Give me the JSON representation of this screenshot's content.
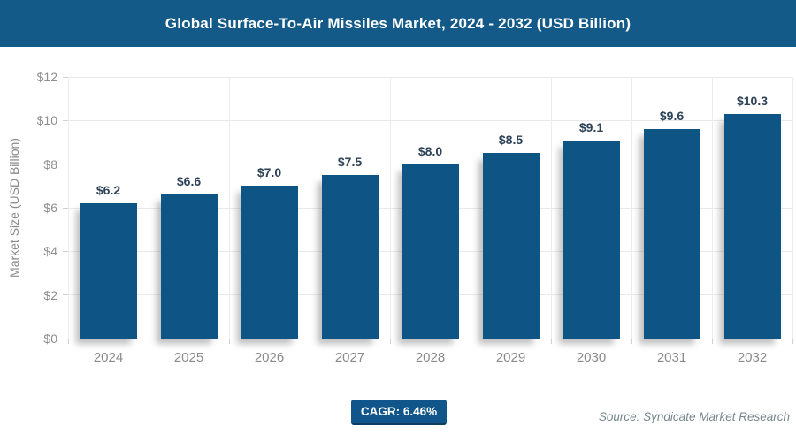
{
  "header": {
    "title": "Global Surface-To-Air Missiles Market, 2024 - 2032 (USD Billion)"
  },
  "chart_data": {
    "type": "bar",
    "title": "Global Surface-To-Air Missiles Market, 2024 - 2032 (USD Billion)",
    "categories": [
      "2024",
      "2025",
      "2026",
      "2027",
      "2028",
      "2029",
      "2030",
      "2031",
      "2032"
    ],
    "values": [
      6.2,
      6.6,
      7.0,
      7.5,
      8.0,
      8.5,
      9.1,
      9.6,
      10.3
    ],
    "bar_labels": [
      "$6.2",
      "$6.6",
      "$7.0",
      "$7.5",
      "$8.0",
      "$8.5",
      "$9.1",
      "$9.6",
      "$10.3"
    ],
    "xlabel": "",
    "ylabel": "Market Size (USD Billion)",
    "ylim": [
      0,
      12
    ],
    "ytick_step": 2,
    "ytick_labels": [
      "$0",
      "$2",
      "$4",
      "$6",
      "$8",
      "$10",
      "$12"
    ],
    "grid": true,
    "legend_position": "none"
  },
  "footer": {
    "cagr_label": "CAGR: 6.46%",
    "source": "Source: Syndicate Market Research"
  },
  "colors": {
    "header_bg": "#135a88",
    "bar_fill": "#0e5585",
    "badge_bg": "#11568a",
    "badge_border": "#0c3e62",
    "data_label": "#2e4357",
    "axis_text": "#8a8a8a",
    "gridline": "#e9e9e9",
    "axis_line": "#cfcfcf"
  }
}
